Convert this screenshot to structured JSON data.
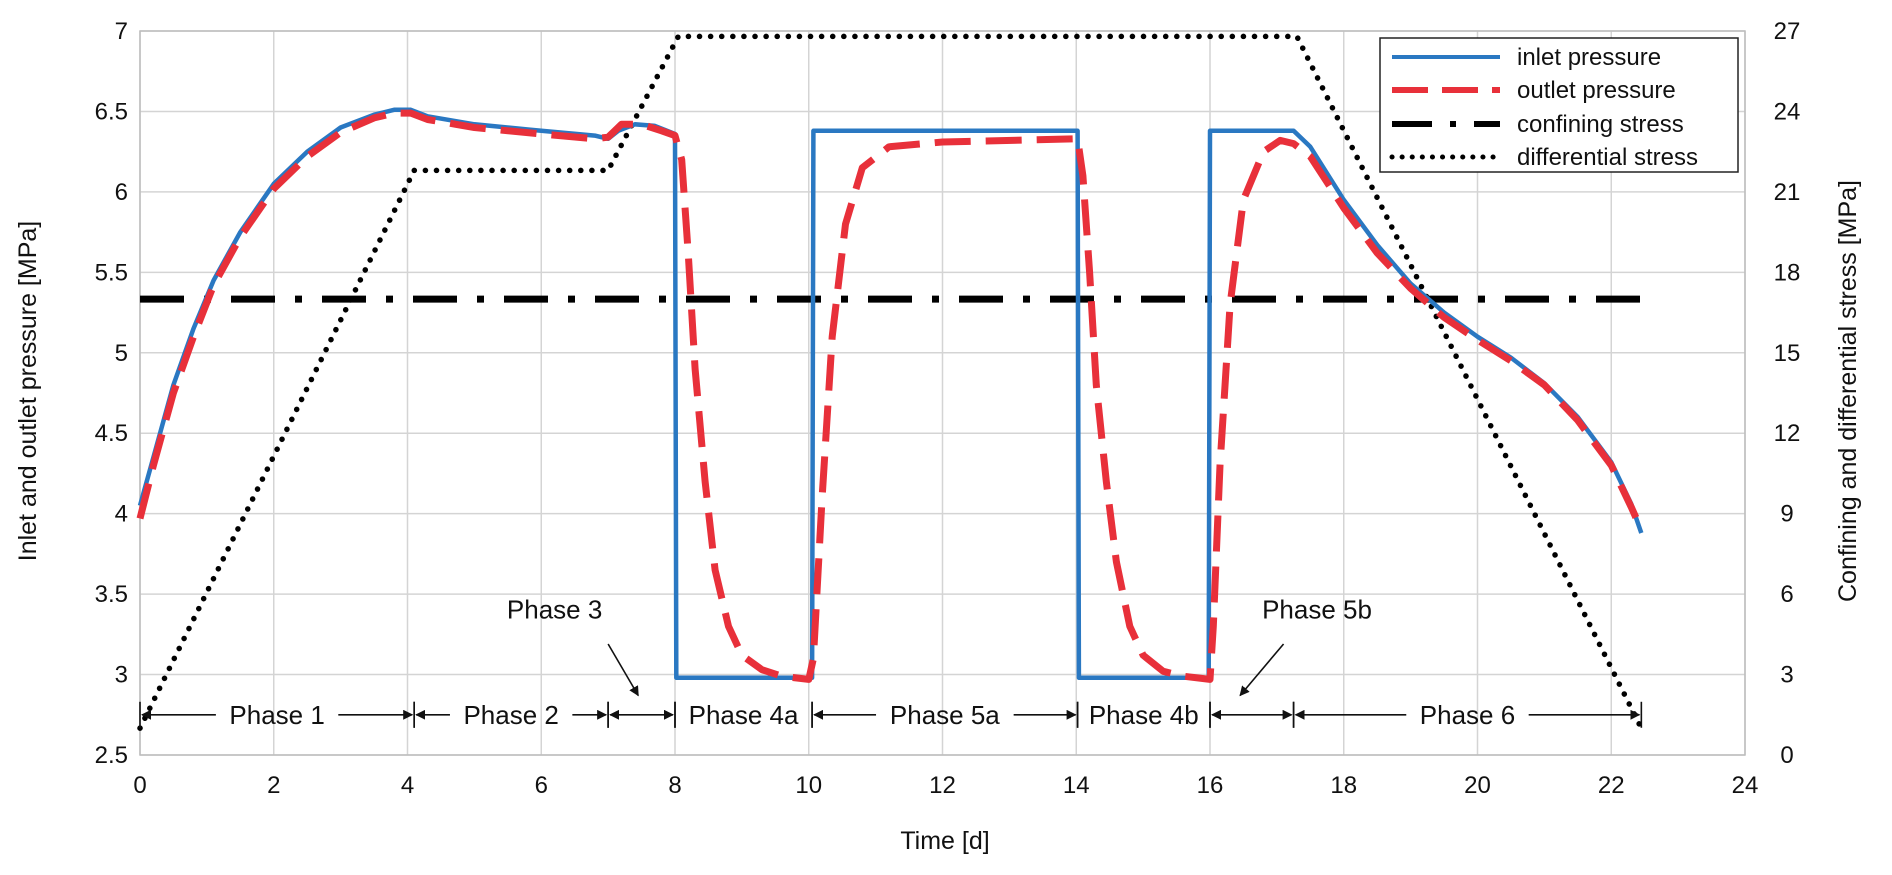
{
  "chart_data": {
    "type": "line",
    "xlabel": "Time [d]",
    "ylabel_left": "Inlet and outlet pressure [MPa]",
    "ylabel_right": "Confining and differential stress [MPa]",
    "xlim": [
      0,
      24
    ],
    "ylim_left": [
      2.5,
      7
    ],
    "ylim_right": [
      0,
      27
    ],
    "x_ticks": [
      "0",
      "2",
      "4",
      "6",
      "8",
      "10",
      "12",
      "14",
      "16",
      "18",
      "20",
      "22",
      "24"
    ],
    "y_left_ticks": [
      "2.5",
      "3",
      "3.5",
      "4",
      "4.5",
      "5",
      "5.5",
      "6",
      "6.5",
      "7"
    ],
    "y_right_ticks": [
      "0",
      "3",
      "6",
      "9",
      "12",
      "15",
      "18",
      "21",
      "24",
      "27"
    ],
    "grid": true,
    "legend_position": "top-right",
    "legend": [
      "inlet pressure",
      "outlet pressure",
      "confining stress",
      "differential stress"
    ],
    "series": [
      {
        "name": "inlet pressure",
        "axis": "left",
        "color": "#2a78c2",
        "style": "solid",
        "points": [
          [
            0,
            4.05
          ],
          [
            0.2,
            4.35
          ],
          [
            0.5,
            4.8
          ],
          [
            0.8,
            5.15
          ],
          [
            1.1,
            5.45
          ],
          [
            1.5,
            5.75
          ],
          [
            2,
            6.05
          ],
          [
            2.5,
            6.25
          ],
          [
            3,
            6.4
          ],
          [
            3.5,
            6.48
          ],
          [
            3.8,
            6.51
          ],
          [
            4.05,
            6.51
          ],
          [
            4.3,
            6.47
          ],
          [
            5,
            6.42
          ],
          [
            6,
            6.38
          ],
          [
            6.8,
            6.35
          ],
          [
            7,
            6.33
          ],
          [
            7.15,
            6.38
          ],
          [
            7.4,
            6.42
          ],
          [
            7.7,
            6.41
          ],
          [
            8,
            6.36
          ],
          [
            8.02,
            2.98
          ],
          [
            10.05,
            2.98
          ],
          [
            10.07,
            6.38
          ],
          [
            14.02,
            6.38
          ],
          [
            14.04,
            2.98
          ],
          [
            15.98,
            2.98
          ],
          [
            16,
            6.38
          ],
          [
            17.25,
            6.38
          ],
          [
            17.5,
            6.28
          ],
          [
            18,
            5.95
          ],
          [
            18.5,
            5.67
          ],
          [
            19,
            5.43
          ],
          [
            19.5,
            5.25
          ],
          [
            20,
            5.1
          ],
          [
            20.5,
            4.97
          ],
          [
            21,
            4.81
          ],
          [
            21.5,
            4.6
          ],
          [
            22,
            4.32
          ],
          [
            22.3,
            4.06
          ],
          [
            22.45,
            3.88
          ]
        ]
      },
      {
        "name": "outlet pressure",
        "axis": "left",
        "color": "#e8303a",
        "style": "dashed",
        "points": [
          [
            0,
            3.97
          ],
          [
            0.2,
            4.3
          ],
          [
            0.5,
            4.75
          ],
          [
            0.8,
            5.1
          ],
          [
            1.1,
            5.42
          ],
          [
            1.5,
            5.72
          ],
          [
            2,
            6.02
          ],
          [
            2.5,
            6.22
          ],
          [
            3,
            6.37
          ],
          [
            3.5,
            6.46
          ],
          [
            3.8,
            6.49
          ],
          [
            4.05,
            6.49
          ],
          [
            4.3,
            6.45
          ],
          [
            5,
            6.4
          ],
          [
            6,
            6.36
          ],
          [
            6.8,
            6.33
          ],
          [
            7,
            6.34
          ],
          [
            7.2,
            6.42
          ],
          [
            7.5,
            6.42
          ],
          [
            7.8,
            6.38
          ],
          [
            8,
            6.35
          ],
          [
            8.1,
            6.2
          ],
          [
            8.2,
            5.6
          ],
          [
            8.3,
            4.9
          ],
          [
            8.45,
            4.2
          ],
          [
            8.6,
            3.65
          ],
          [
            8.8,
            3.3
          ],
          [
            9,
            3.12
          ],
          [
            9.3,
            3.03
          ],
          [
            9.6,
            2.99
          ],
          [
            10,
            2.97
          ],
          [
            10.07,
            3.1
          ],
          [
            10.2,
            4.1
          ],
          [
            10.35,
            5.1
          ],
          [
            10.55,
            5.8
          ],
          [
            10.8,
            6.15
          ],
          [
            11.2,
            6.28
          ],
          [
            12,
            6.31
          ],
          [
            14.02,
            6.33
          ],
          [
            14.1,
            6.1
          ],
          [
            14.2,
            5.5
          ],
          [
            14.3,
            4.8
          ],
          [
            14.45,
            4.2
          ],
          [
            14.6,
            3.7
          ],
          [
            14.8,
            3.3
          ],
          [
            15,
            3.12
          ],
          [
            15.3,
            3.02
          ],
          [
            15.6,
            2.99
          ],
          [
            16,
            2.97
          ],
          [
            16.05,
            3.3
          ],
          [
            16.15,
            4.3
          ],
          [
            16.3,
            5.3
          ],
          [
            16.5,
            5.95
          ],
          [
            16.8,
            6.25
          ],
          [
            17.05,
            6.32
          ],
          [
            17.25,
            6.3
          ],
          [
            17.5,
            6.22
          ],
          [
            18,
            5.9
          ],
          [
            18.5,
            5.62
          ],
          [
            19,
            5.4
          ],
          [
            19.5,
            5.22
          ],
          [
            20,
            5.08
          ],
          [
            20.5,
            4.95
          ],
          [
            21,
            4.8
          ],
          [
            21.5,
            4.58
          ],
          [
            22,
            4.3
          ],
          [
            22.3,
            4.04
          ],
          [
            22.45,
            3.9
          ]
        ]
      },
      {
        "name": "confining stress",
        "axis": "right",
        "color": "#000000",
        "style": "dashdot",
        "points": [
          [
            0,
            17
          ],
          [
            22.45,
            17
          ]
        ]
      },
      {
        "name": "differential stress",
        "axis": "right",
        "color": "#000000",
        "style": "dotted",
        "points": [
          [
            0,
            1
          ],
          [
            4.1,
            21.8
          ],
          [
            7,
            21.8
          ],
          [
            8.05,
            26.8
          ],
          [
            17.3,
            26.8
          ],
          [
            22.45,
            1
          ]
        ]
      }
    ],
    "annotations": [
      {
        "label": "Phase 1",
        "from": 0,
        "to": 4.1,
        "y": 2.75
      },
      {
        "label": "Phase 2",
        "from": 4.1,
        "to": 7,
        "y": 2.75
      },
      {
        "label": "Phase 3",
        "from": 7,
        "to": 8,
        "y": 2.75,
        "callout": true
      },
      {
        "label": "Phase 4a",
        "from": 8,
        "to": 10.05,
        "y": 2.75
      },
      {
        "label": "Phase 5a",
        "from": 10.05,
        "to": 14.02,
        "y": 2.75
      },
      {
        "label": "Phase 4b",
        "from": 14.02,
        "to": 16,
        "y": 2.75
      },
      {
        "label": "Phase 5b",
        "from": 16,
        "to": 17.25,
        "y": 2.75,
        "callout": true
      },
      {
        "label": "Phase 6",
        "from": 17.25,
        "to": 22.45,
        "y": 2.75
      }
    ]
  }
}
